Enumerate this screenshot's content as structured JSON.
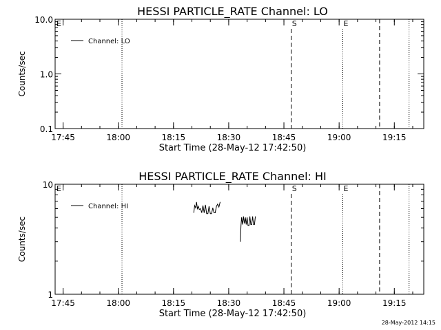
{
  "footer": {
    "timestamp": "28-May-2012 14:15"
  },
  "chart_data": [
    {
      "type": "line",
      "title": "HESSI PARTICLE_RATE Channel: LO",
      "xlabel": "Start Time (28-May-12 17:42:50)",
      "ylabel": "Counts/sec",
      "yscale": "log",
      "ylim": [
        0.1,
        10.0
      ],
      "yticks": [
        "0.1",
        "1.0",
        "10.0"
      ],
      "xlim": [
        "17:42:50",
        "19:23:00"
      ],
      "xticks": [
        "17:45",
        "18:00",
        "18:15",
        "18:30",
        "18:45",
        "19:00",
        "19:15"
      ],
      "legend": {
        "placement": "top-left",
        "label": "Channel: LO"
      },
      "series": [
        {
          "name": "Channel: LO",
          "points": []
        }
      ],
      "markers": [
        {
          "time": "17:42:50",
          "style": "dotted",
          "label": "E"
        },
        {
          "time": "18:01",
          "style": "dotted",
          "label": ""
        },
        {
          "time": "18:47",
          "style": "dashed",
          "label": "S"
        },
        {
          "time": "19:01",
          "style": "dotted",
          "label": "E"
        },
        {
          "time": "19:11",
          "style": "dashed",
          "label": ""
        },
        {
          "time": "19:19",
          "style": "dotted",
          "label": ""
        }
      ]
    },
    {
      "type": "line",
      "title": "HESSI PARTICLE_RATE Channel: HI",
      "xlabel": "Start Time (28-May-12 17:42:50)",
      "ylabel": "Counts/sec",
      "yscale": "log",
      "ylim": [
        1,
        10
      ],
      "yticks": [
        "1",
        "10"
      ],
      "xlim": [
        "17:42:50",
        "19:23:00"
      ],
      "xticks": [
        "17:45",
        "18:00",
        "18:15",
        "18:30",
        "18:45",
        "19:00",
        "19:15"
      ],
      "legend": {
        "placement": "top-left",
        "label": "Channel: HI"
      },
      "series": [
        {
          "name": "Channel: HI",
          "segments": [
            [
              [
                "18:20:30",
                5.5
              ],
              [
                "18:20:45",
                6.4
              ],
              [
                "18:21:00",
                6.1
              ],
              [
                "18:21:15",
                6.9
              ],
              [
                "18:21:30",
                6.0
              ],
              [
                "18:21:45",
                6.3
              ],
              [
                "18:22:00",
                5.9
              ],
              [
                "18:22:20",
                6.0
              ],
              [
                "18:22:40",
                5.5
              ],
              [
                "18:23:00",
                6.4
              ],
              [
                "18:23:20",
                5.5
              ],
              [
                "18:23:40",
                6.5
              ],
              [
                "18:24:00",
                5.4
              ],
              [
                "18:24:20",
                5.4
              ],
              [
                "18:24:40",
                6.3
              ],
              [
                "18:25:00",
                5.4
              ],
              [
                "18:25:20",
                5.4
              ],
              [
                "18:25:40",
                6.1
              ],
              [
                "18:26:00",
                5.5
              ],
              [
                "18:26:20",
                5.5
              ],
              [
                "18:26:40",
                6.3
              ],
              [
                "18:27:00",
                6.6
              ],
              [
                "18:27:20",
                6.2
              ],
              [
                "18:27:40",
                6.9
              ]
            ],
            [
              [
                "18:33:10",
                3.0
              ],
              [
                "18:33:20",
                4.2
              ],
              [
                "18:33:30",
                5.0
              ],
              [
                "18:33:45",
                4.3
              ],
              [
                "18:34:00",
                5.1
              ],
              [
                "18:34:15",
                4.4
              ],
              [
                "18:34:30",
                5.0
              ],
              [
                "18:34:45",
                4.3
              ],
              [
                "18:35:00",
                5.0
              ],
              [
                "18:35:15",
                4.2
              ],
              [
                "18:35:30",
                4.2
              ],
              [
                "18:35:45",
                5.1
              ],
              [
                "18:36:00",
                4.3
              ],
              [
                "18:36:15",
                4.3
              ],
              [
                "18:36:30",
                5.1
              ],
              [
                "18:36:45",
                4.3
              ],
              [
                "18:37:00",
                4.3
              ],
              [
                "18:37:15",
                5.1
              ]
            ]
          ]
        }
      ],
      "markers": [
        {
          "time": "17:42:50",
          "style": "dotted",
          "label": "E"
        },
        {
          "time": "18:01",
          "style": "dotted",
          "label": ""
        },
        {
          "time": "18:47",
          "style": "dashed",
          "label": "S"
        },
        {
          "time": "19:01",
          "style": "dotted",
          "label": "E"
        },
        {
          "time": "19:11",
          "style": "dashed",
          "label": ""
        },
        {
          "time": "19:19",
          "style": "dotted",
          "label": ""
        }
      ]
    }
  ]
}
